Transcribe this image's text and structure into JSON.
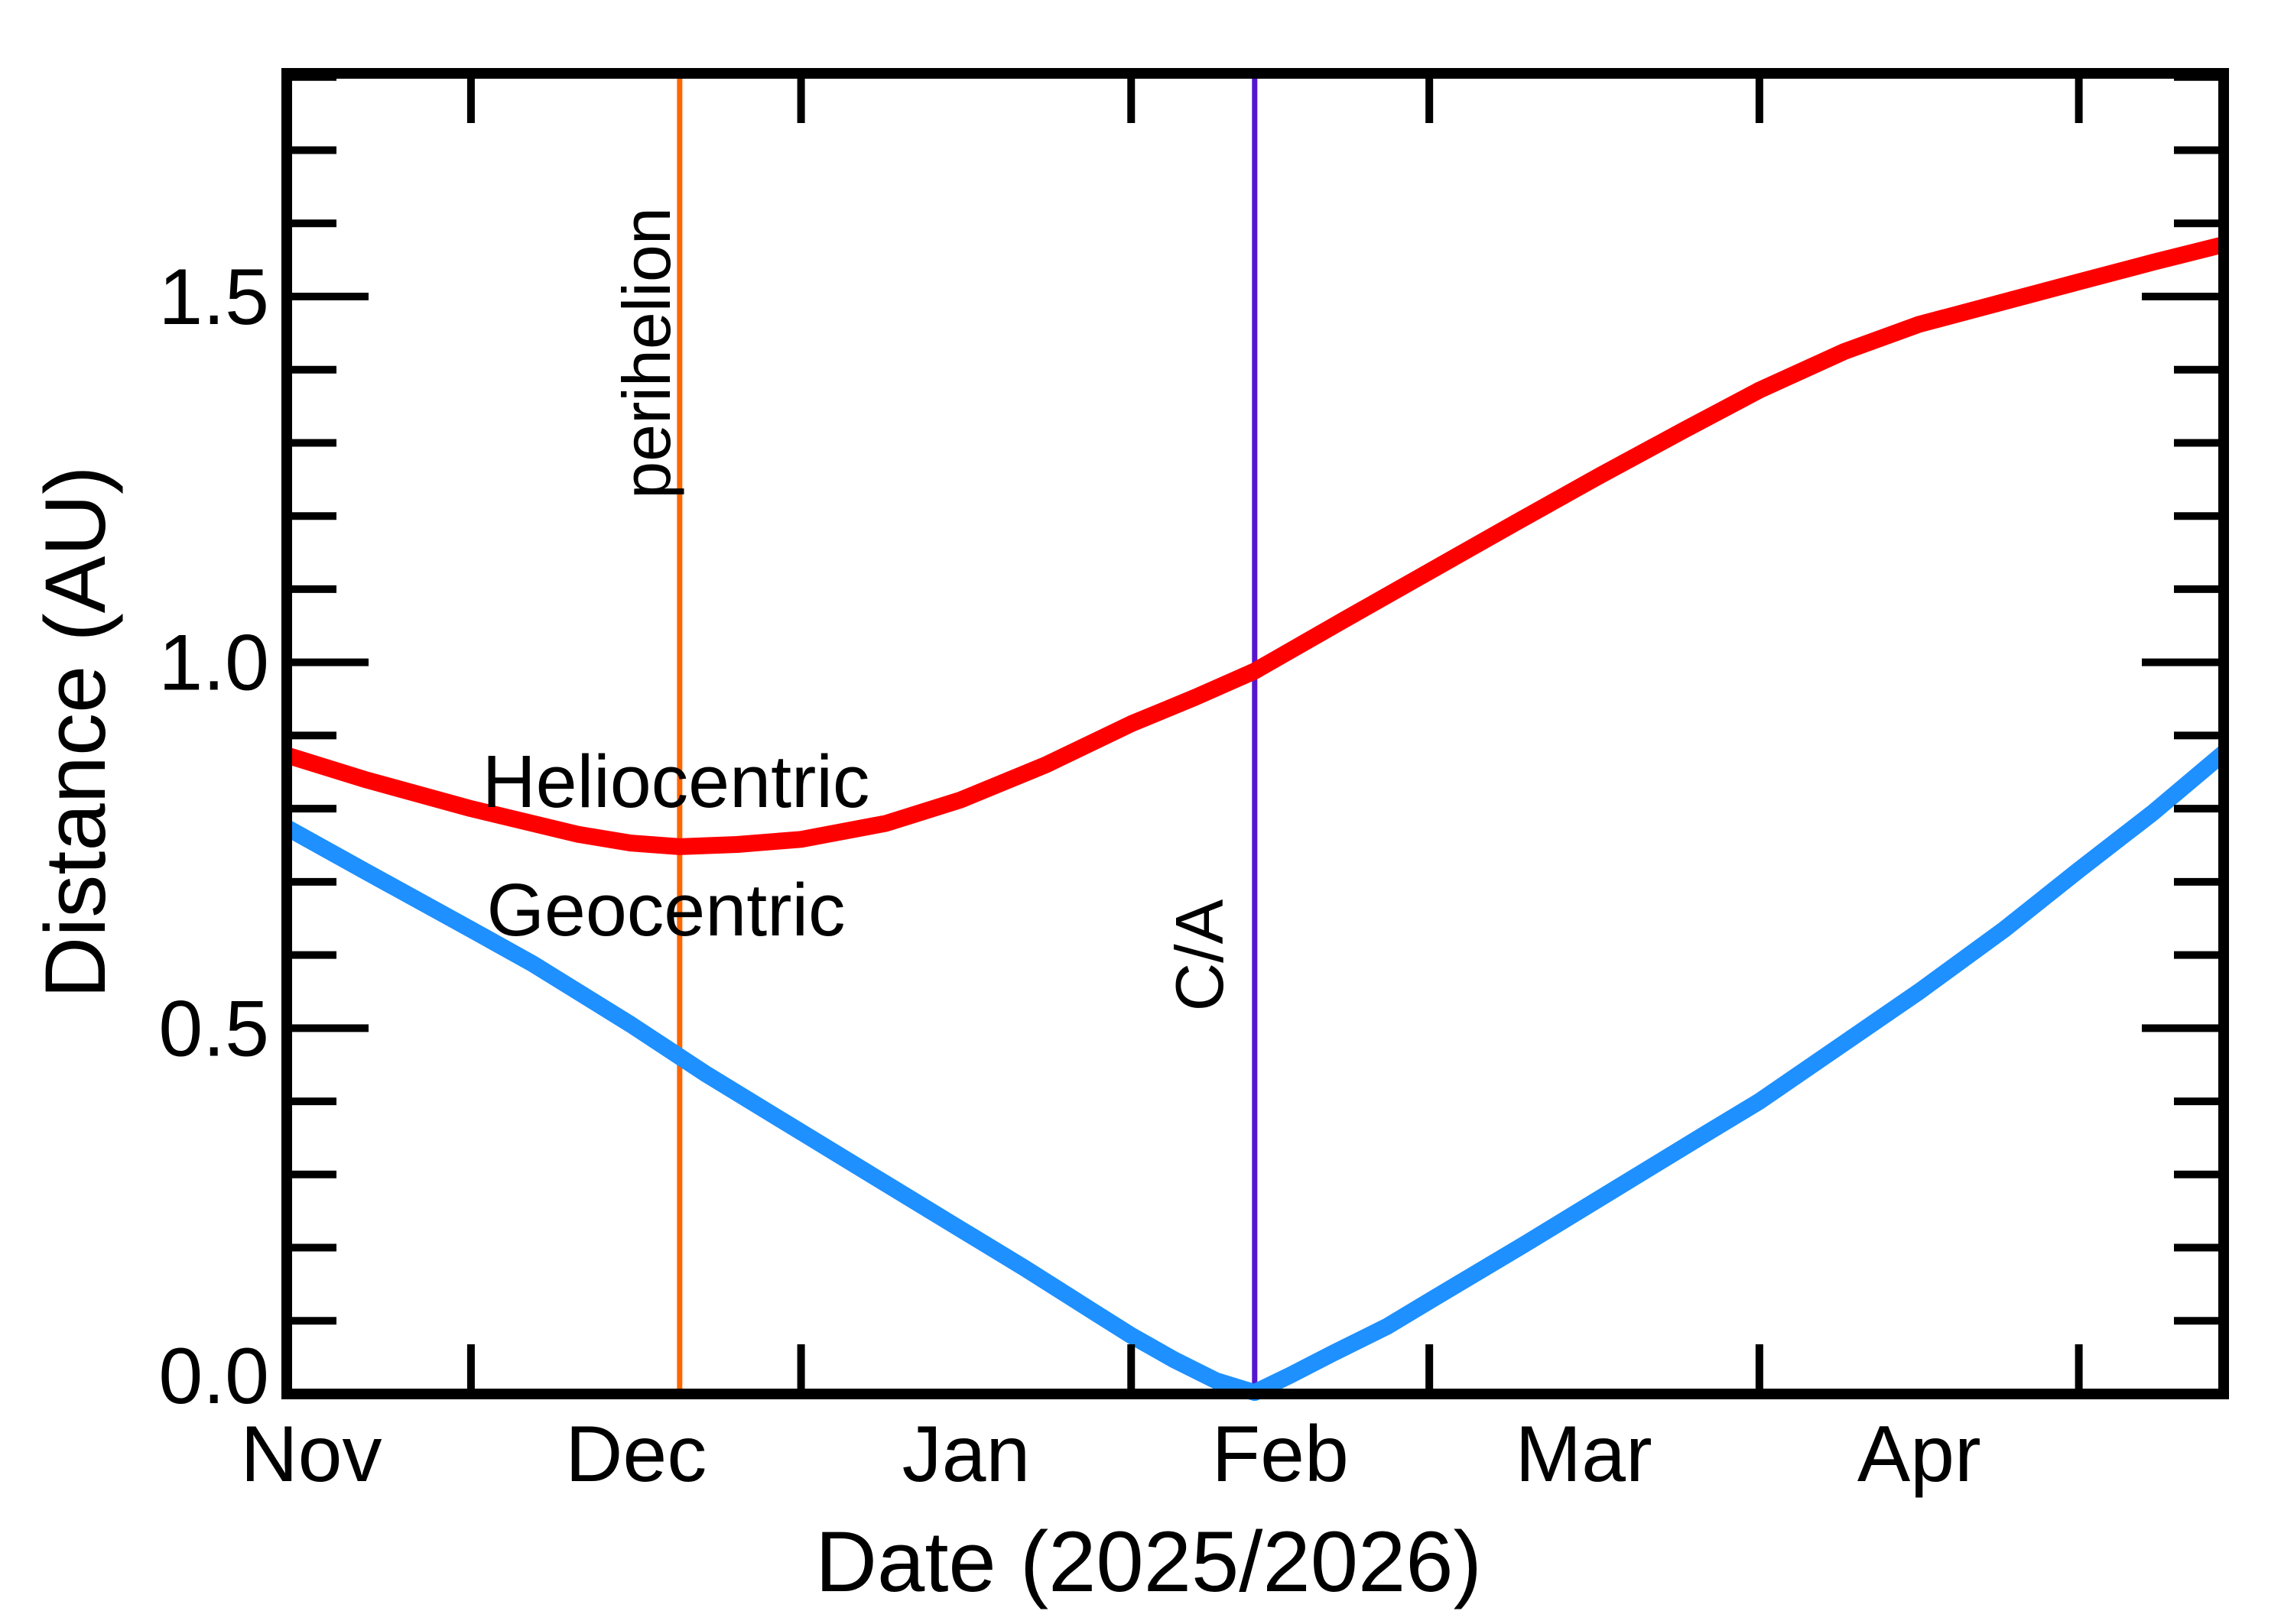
{
  "chart_data": {
    "type": "line",
    "title": "",
    "xlabel": "Date (2025/2026)",
    "ylabel": "Distance (AU)",
    "x_unit": "days since Nov 1 (2025)",
    "xlim_days": [
      12.7,
      194.6
    ],
    "ylim": [
      0.0,
      1.805
    ],
    "grid": false,
    "legend_position": "labels drawn next to curves",
    "y_minor_step": 0.1,
    "y_tick_labels": [
      {
        "label": "0.0",
        "value": 0.0
      },
      {
        "label": "0.5",
        "value": 0.5
      },
      {
        "label": "1.0",
        "value": 1.0
      },
      {
        "label": "1.5",
        "value": 1.5
      }
    ],
    "x_tick_days": [
      30,
      61,
      92,
      120,
      151,
      181
    ],
    "months": [
      {
        "label": "Nov",
        "mid_day": 15
      },
      {
        "label": "Dec",
        "mid_day": 45.5
      },
      {
        "label": "Jan",
        "mid_day": 76.5
      },
      {
        "label": "Feb",
        "mid_day": 106
      },
      {
        "label": "Mar",
        "mid_day": 134.5
      },
      {
        "label": "Apr",
        "mid_day": 166
      }
    ],
    "series": [
      {
        "name": "Heliocentric",
        "color": "#ff0000",
        "points": [
          [
            12.7,
            0.873
          ],
          [
            20,
            0.84
          ],
          [
            30,
            0.8
          ],
          [
            40,
            0.765
          ],
          [
            45,
            0.753
          ],
          [
            49.6,
            0.748
          ],
          [
            55,
            0.751
          ],
          [
            61,
            0.758
          ],
          [
            69,
            0.78
          ],
          [
            76,
            0.812
          ],
          [
            84,
            0.86
          ],
          [
            92,
            0.916
          ],
          [
            98,
            0.952
          ],
          [
            103.6,
            0.988
          ],
          [
            112,
            1.058
          ],
          [
            120,
            1.124
          ],
          [
            128,
            1.19
          ],
          [
            136,
            1.255
          ],
          [
            144,
            1.318
          ],
          [
            151,
            1.372
          ],
          [
            159,
            1.425
          ],
          [
            166,
            1.462
          ],
          [
            174,
            1.493
          ],
          [
            181,
            1.52
          ],
          [
            188,
            1.547
          ],
          [
            194.6,
            1.571
          ]
        ]
      },
      {
        "name": "Geocentric",
        "color": "#1e90ff",
        "points": [
          [
            12.7,
            0.774
          ],
          [
            20,
            0.715
          ],
          [
            30,
            0.635
          ],
          [
            35.8,
            0.588
          ],
          [
            45,
            0.505
          ],
          [
            52,
            0.438
          ],
          [
            61,
            0.358
          ],
          [
            69,
            0.287
          ],
          [
            76,
            0.225
          ],
          [
            82,
            0.172
          ],
          [
            88.4,
            0.113
          ],
          [
            92,
            0.08
          ],
          [
            96,
            0.047
          ],
          [
            100,
            0.018
          ],
          [
            103.6,
            0.002
          ],
          [
            107,
            0.026
          ],
          [
            111,
            0.056
          ],
          [
            116,
            0.092
          ],
          [
            120,
            0.127
          ],
          [
            129,
            0.205
          ],
          [
            138,
            0.285
          ],
          [
            146,
            0.356
          ],
          [
            151,
            0.4
          ],
          [
            160,
            0.49
          ],
          [
            166,
            0.55
          ],
          [
            174,
            0.635
          ],
          [
            181,
            0.716
          ],
          [
            188,
            0.795
          ],
          [
            194.6,
            0.876
          ]
        ]
      }
    ],
    "annotations": [
      {
        "label": "perihelion",
        "day": 49.6,
        "color": "#ff6600"
      },
      {
        "label": "C/A",
        "day": 103.6,
        "color": "#5417cf"
      }
    ]
  }
}
